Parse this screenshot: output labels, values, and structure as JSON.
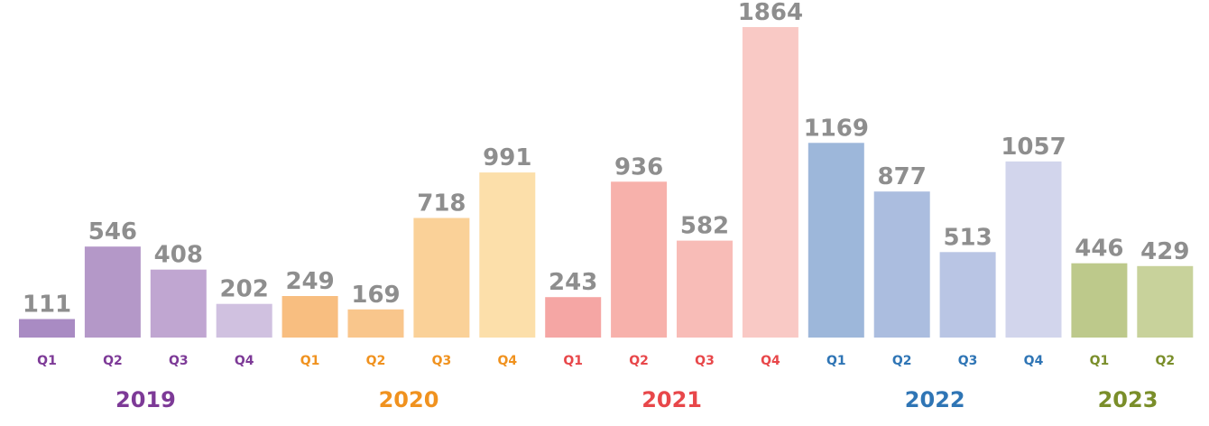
{
  "chart_data": {
    "type": "bar",
    "title": "",
    "xlabel": "",
    "ylabel": "",
    "ylim": [
      0,
      1864
    ],
    "grid": false,
    "groups": [
      {
        "year": "2019",
        "year_color": "#7d3a97",
        "label_color": "#7d3a97",
        "bars": [
          {
            "quarter": "Q1",
            "value": 111,
            "color": "#a98bc3"
          },
          {
            "quarter": "Q2",
            "value": 546,
            "color": "#b498c8"
          },
          {
            "quarter": "Q3",
            "value": 408,
            "color": "#c0a6d1"
          },
          {
            "quarter": "Q4",
            "value": 202,
            "color": "#d0c1e0"
          }
        ]
      },
      {
        "year": "2020",
        "year_color": "#f0921f",
        "label_color": "#f0921f",
        "bars": [
          {
            "quarter": "Q1",
            "value": 249,
            "color": "#f8be80"
          },
          {
            "quarter": "Q2",
            "value": 169,
            "color": "#f9c68c"
          },
          {
            "quarter": "Q3",
            "value": 718,
            "color": "#fad198"
          },
          {
            "quarter": "Q4",
            "value": 991,
            "color": "#fcdfaa"
          }
        ]
      },
      {
        "year": "2021",
        "year_color": "#e8474a",
        "label_color": "#e8474a",
        "bars": [
          {
            "quarter": "Q1",
            "value": 243,
            "color": "#f5a6a4"
          },
          {
            "quarter": "Q2",
            "value": 936,
            "color": "#f7b1ab"
          },
          {
            "quarter": "Q3",
            "value": 582,
            "color": "#f8bcb7"
          },
          {
            "quarter": "Q4",
            "value": 1864,
            "color": "#f9c9c5"
          }
        ]
      },
      {
        "year": "2022",
        "year_color": "#2f75b5",
        "label_color": "#2f75b5",
        "bars": [
          {
            "quarter": "Q1",
            "value": 1169,
            "color": "#9db7da"
          },
          {
            "quarter": "Q2",
            "value": 877,
            "color": "#abbddf"
          },
          {
            "quarter": "Q3",
            "value": 513,
            "color": "#b9c5e4"
          },
          {
            "quarter": "Q4",
            "value": 1057,
            "color": "#d2d5ec"
          }
        ]
      },
      {
        "year": "2023",
        "year_color": "#7a8e2a",
        "label_color": "#7a8e2a",
        "bars": [
          {
            "quarter": "Q1",
            "value": 446,
            "color": "#bdc98b"
          },
          {
            "quarter": "Q2",
            "value": 429,
            "color": "#c8d29b"
          }
        ]
      }
    ]
  }
}
